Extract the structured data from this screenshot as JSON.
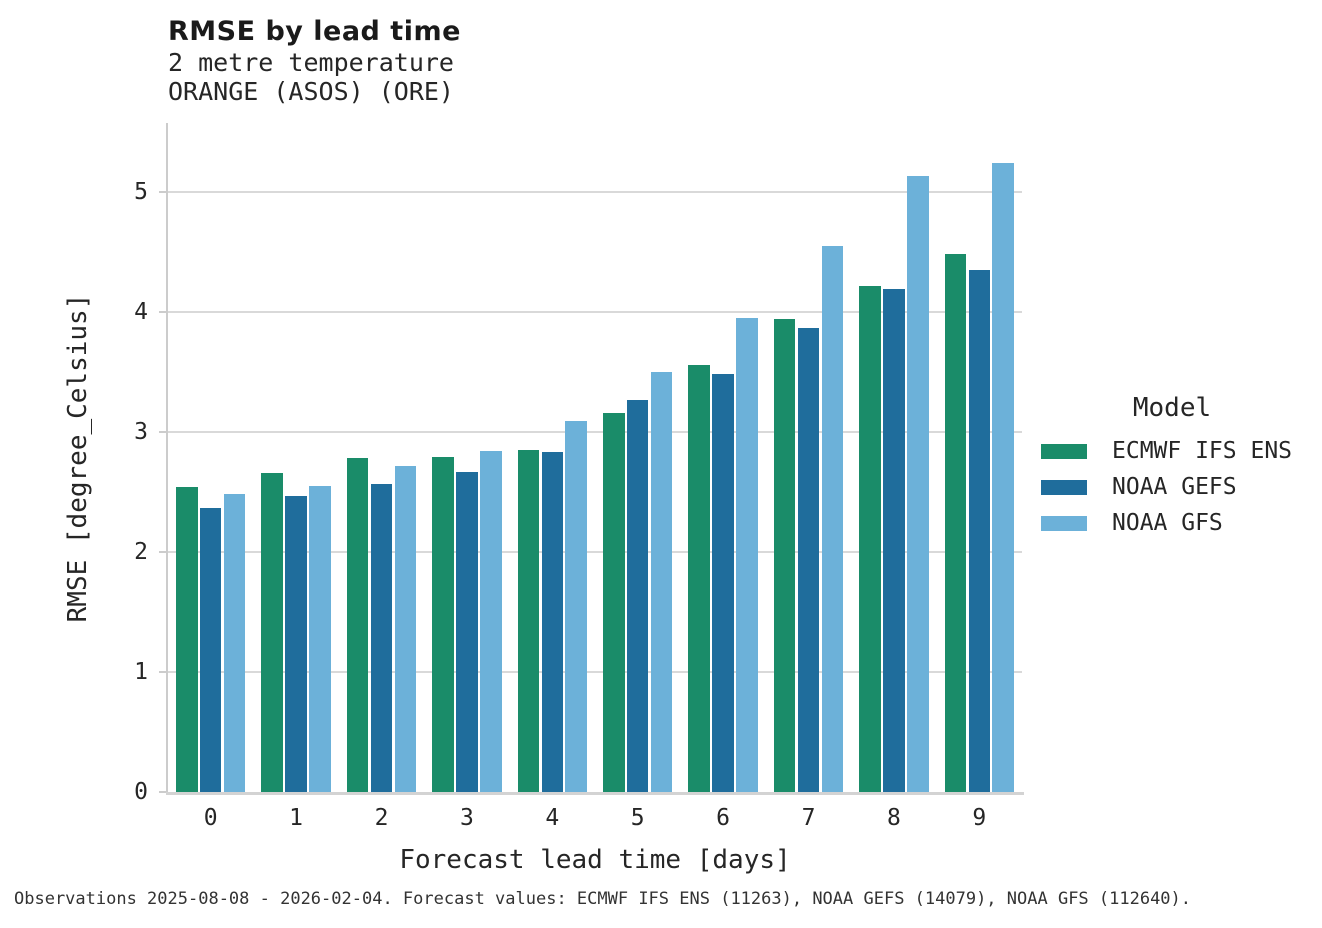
{
  "header": {
    "title": "RMSE by lead time",
    "subtitle1": "2 metre temperature",
    "subtitle2": "ORANGE (ASOS) (ORE)"
  },
  "legend": {
    "title": "Model"
  },
  "caption": "Observations 2025-08-08 - 2026-02-04. Forecast values: ECMWF IFS ENS (11263), NOAA GEFS (14079), NOAA GFS (112640).",
  "chart_data": {
    "type": "bar",
    "title": "RMSE by lead time",
    "subtitle": [
      "2 metre temperature",
      "ORANGE (ASOS) (ORE)"
    ],
    "xlabel": "Forecast lead time [days]",
    "ylabel": "RMSE [degree_Celsius]",
    "categories": [
      "0",
      "1",
      "2",
      "3",
      "4",
      "5",
      "6",
      "7",
      "8",
      "9"
    ],
    "series": [
      {
        "name": "ECMWF IFS ENS",
        "color": "#1a8c69",
        "values": [
          2.54,
          2.66,
          2.78,
          2.79,
          2.85,
          3.16,
          3.56,
          3.94,
          4.22,
          4.48
        ]
      },
      {
        "name": "NOAA GEFS",
        "color": "#1f6d9c",
        "values": [
          2.37,
          2.47,
          2.57,
          2.67,
          2.83,
          3.27,
          3.48,
          3.87,
          4.19,
          4.35
        ]
      },
      {
        "name": "NOAA GFS",
        "color": "#6cb1d9",
        "values": [
          2.48,
          2.55,
          2.72,
          2.84,
          3.09,
          3.5,
          3.95,
          4.55,
          5.13,
          5.24
        ]
      }
    ],
    "ylim": [
      0,
      5.575
    ],
    "yticks": [
      0,
      1,
      2,
      3,
      4,
      5
    ],
    "grid": "horizontal",
    "legend_title": "Model",
    "legend_position": "right",
    "colors": {
      "grid": "#d9d9d9",
      "spine": "#cccccc",
      "text": "#262626"
    }
  }
}
